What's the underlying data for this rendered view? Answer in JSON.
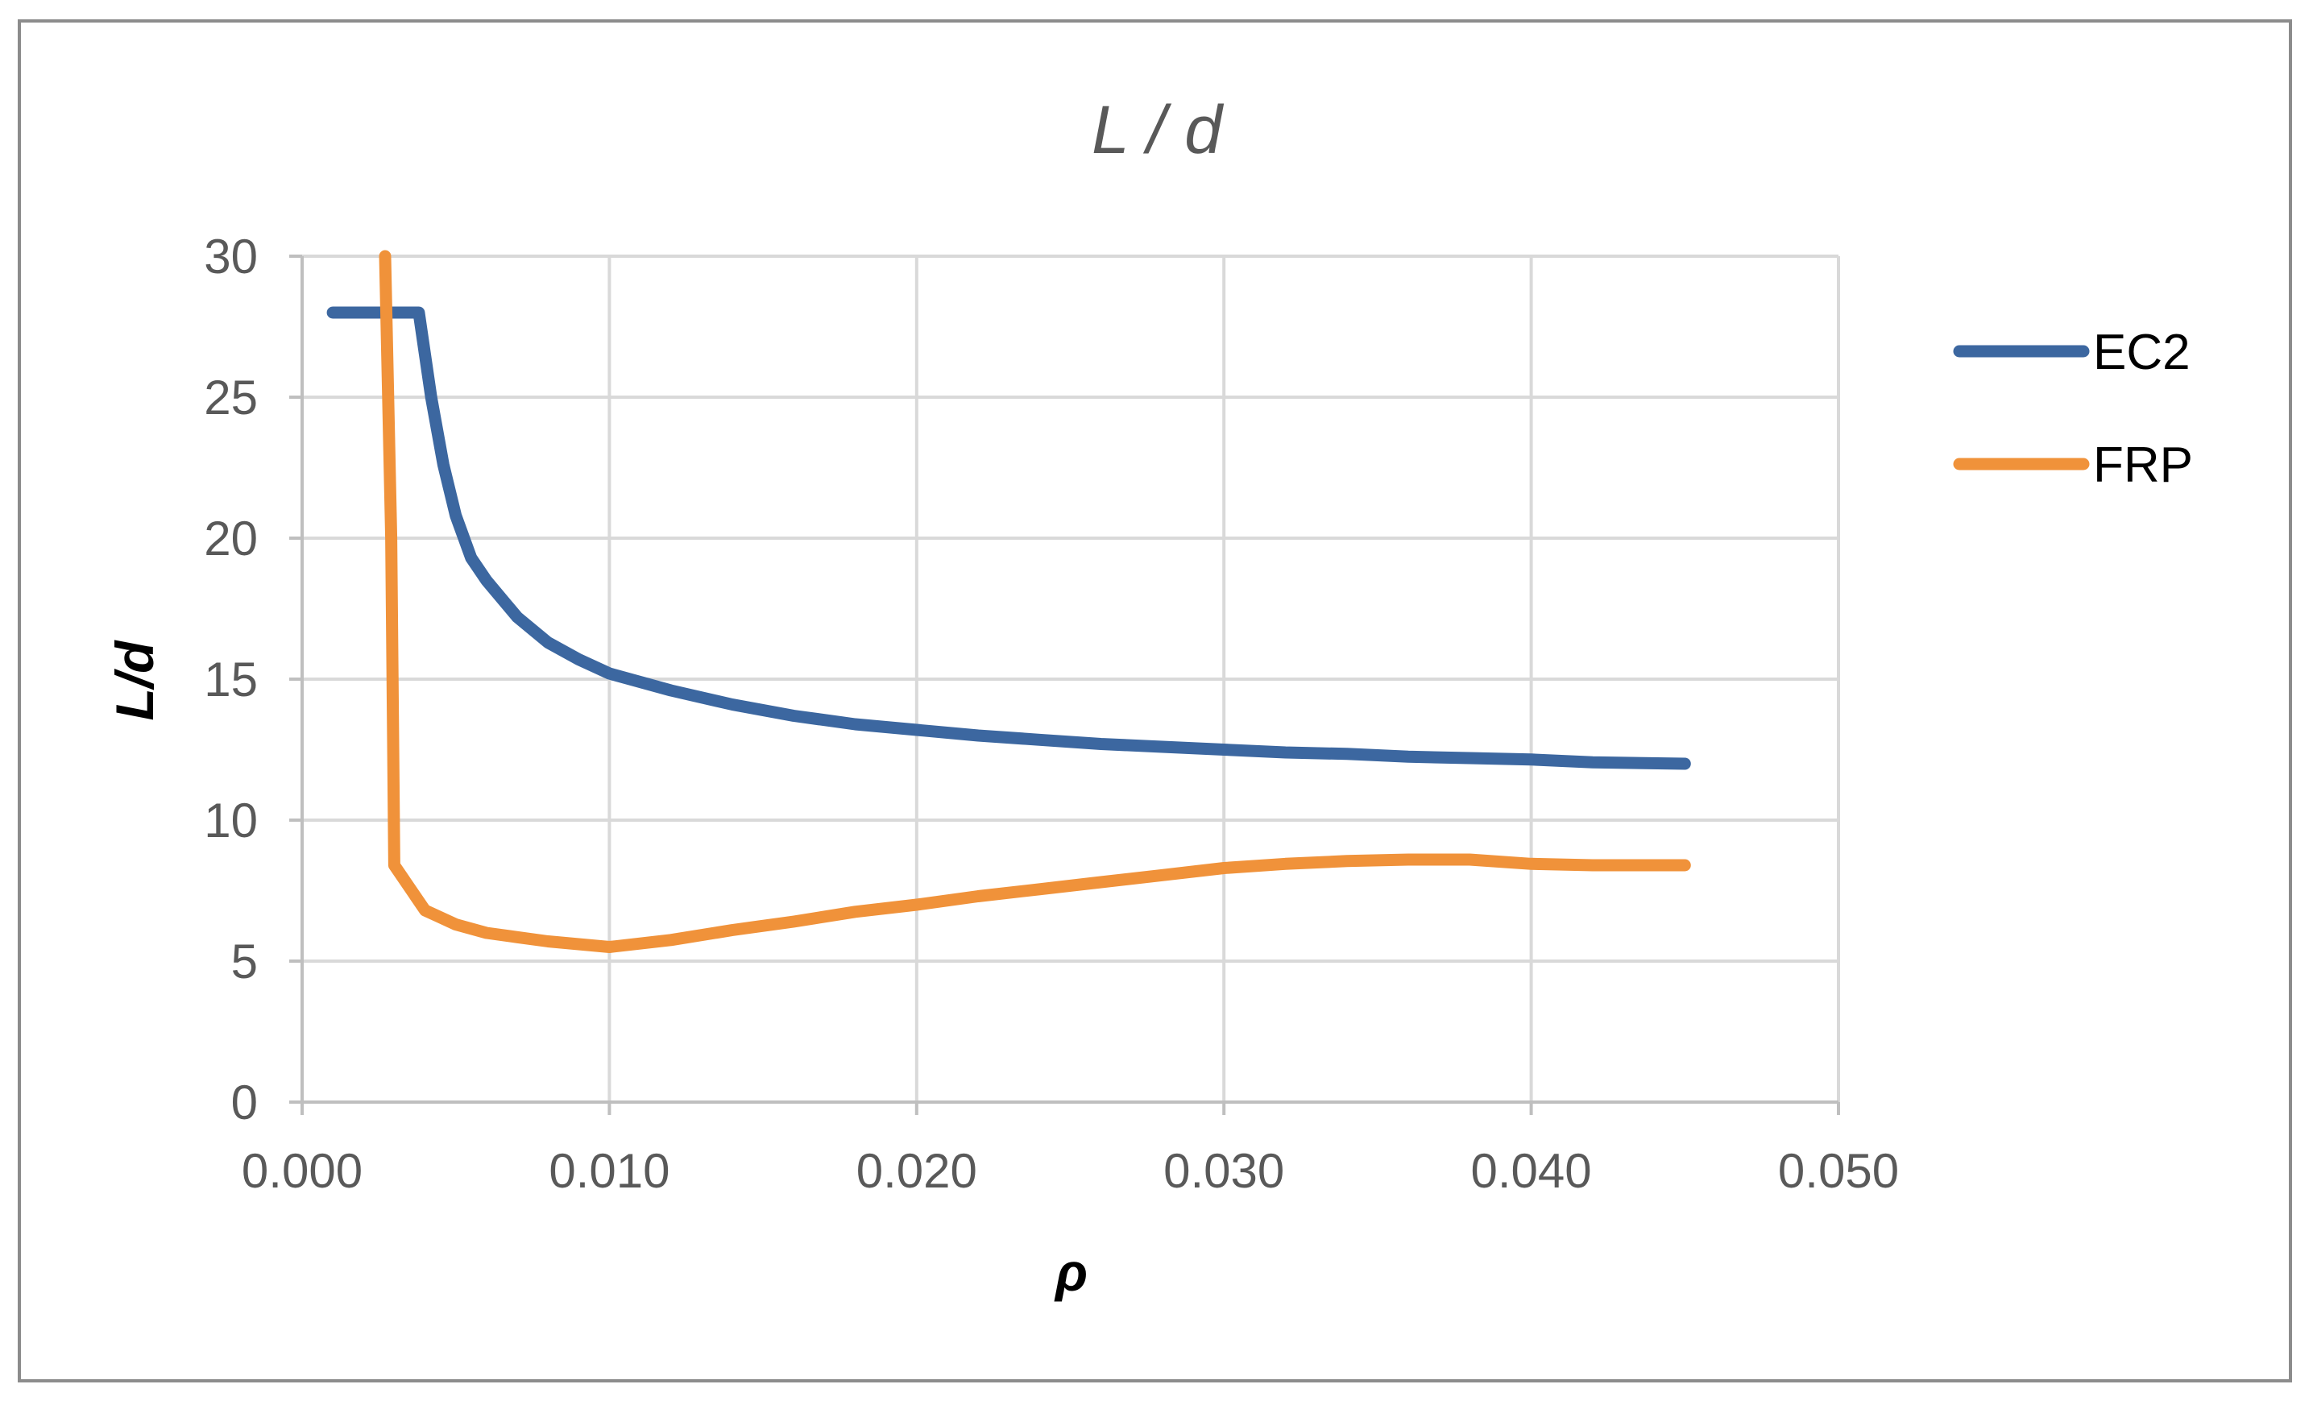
{
  "chart_data": {
    "type": "line",
    "title": "L / d",
    "xlabel": "ρ",
    "ylabel": "L/d",
    "xlim": [
      0.0,
      0.05
    ],
    "ylim": [
      0,
      30
    ],
    "x_ticks": [
      "0.000",
      "0.010",
      "0.020",
      "0.030",
      "0.040",
      "0.050"
    ],
    "y_ticks": [
      "0",
      "5",
      "10",
      "15",
      "20",
      "25",
      "30"
    ],
    "grid": true,
    "legend_position": "right",
    "series": [
      {
        "name": "EC2",
        "color": "#3c67a0",
        "x": [
          0.001,
          0.002,
          0.0038,
          0.0042,
          0.0046,
          0.005,
          0.0055,
          0.006,
          0.007,
          0.008,
          0.009,
          0.01,
          0.012,
          0.014,
          0.016,
          0.018,
          0.02,
          0.022,
          0.024,
          0.026,
          0.028,
          0.03,
          0.032,
          0.034,
          0.036,
          0.038,
          0.04,
          0.042,
          0.045
        ],
        "y": [
          28,
          28,
          28,
          25.0,
          22.6,
          20.8,
          19.3,
          18.5,
          17.2,
          16.3,
          15.7,
          15.2,
          14.6,
          14.1,
          13.7,
          13.4,
          13.2,
          13.0,
          12.85,
          12.7,
          12.6,
          12.5,
          12.4,
          12.35,
          12.25,
          12.2,
          12.15,
          12.05,
          12.0
        ]
      },
      {
        "name": "FRP",
        "color": "#f0923a",
        "x": [
          0.0027,
          0.0029,
          0.003,
          0.004,
          0.005,
          0.006,
          0.007,
          0.008,
          0.009,
          0.01,
          0.012,
          0.014,
          0.016,
          0.018,
          0.02,
          0.022,
          0.024,
          0.026,
          0.028,
          0.03,
          0.032,
          0.034,
          0.036,
          0.038,
          0.04,
          0.042,
          0.045
        ],
        "y": [
          30,
          20,
          8.4,
          6.8,
          6.3,
          6.0,
          5.85,
          5.7,
          5.6,
          5.5,
          5.75,
          6.1,
          6.4,
          6.75,
          7.0,
          7.3,
          7.55,
          7.8,
          8.05,
          8.3,
          8.45,
          8.55,
          8.6,
          8.6,
          8.45,
          8.4,
          8.4
        ]
      }
    ]
  }
}
